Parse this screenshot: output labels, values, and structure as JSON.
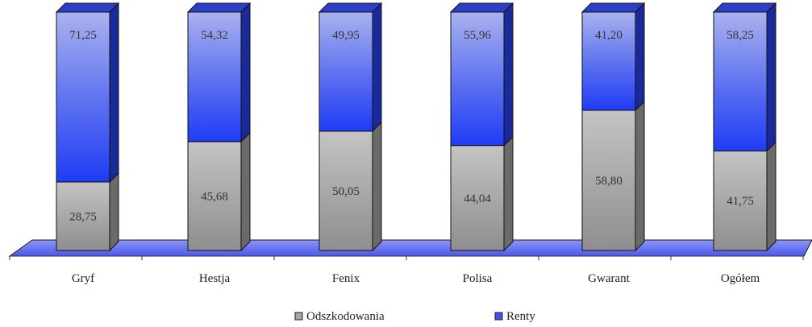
{
  "chart_data": {
    "type": "bar",
    "stacked": true,
    "normalized_percent": true,
    "categories": [
      "Gryf",
      "Hestja",
      "Fenix",
      "Polisa",
      "Gwarant",
      "Ogółem"
    ],
    "series": [
      {
        "name": "Odszkodowania",
        "values": [
          28.75,
          45.68,
          50.05,
          44.04,
          58.8,
          41.75
        ],
        "labels": [
          "28,75",
          "45,68",
          "50,05",
          "44,04",
          "58,80",
          "41,75"
        ],
        "color": "#a6a6a6"
      },
      {
        "name": "Renty",
        "values": [
          71.25,
          54.32,
          49.95,
          55.96,
          41.2,
          58.25
        ],
        "labels": [
          "71,25",
          "54,32",
          "49,95",
          "55,96",
          "41,20",
          "58,25"
        ],
        "color": "#3b54f0"
      }
    ],
    "ylim": [
      0,
      100
    ],
    "grid": false,
    "legend_position": "bottom"
  }
}
